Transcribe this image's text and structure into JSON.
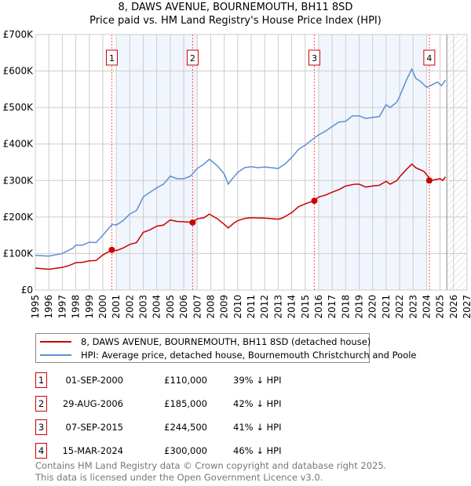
{
  "title": "8, DAWS AVENUE, BOURNEMOUTH, BH11 8SD",
  "subtitle": "Price paid vs. HM Land Registry's House Price Index (HPI)",
  "chart_data": {
    "type": "line",
    "xlim": [
      1995,
      2027
    ],
    "ylim": [
      0,
      700000
    ],
    "y_ticks": [
      {
        "v": 0,
        "label": "£0"
      },
      {
        "v": 100000,
        "label": "£100K"
      },
      {
        "v": 200000,
        "label": "£200K"
      },
      {
        "v": 300000,
        "label": "£300K"
      },
      {
        "v": 400000,
        "label": "£400K"
      },
      {
        "v": 500000,
        "label": "£500K"
      },
      {
        "v": 600000,
        "label": "£600K"
      },
      {
        "v": 700000,
        "label": "£700K"
      }
    ],
    "x_ticks": [
      "1995",
      "1996",
      "1997",
      "1998",
      "1999",
      "2000",
      "2001",
      "2002",
      "2003",
      "2004",
      "2005",
      "2006",
      "2007",
      "2008",
      "2009",
      "2010",
      "2011",
      "2012",
      "2013",
      "2014",
      "2015",
      "2016",
      "2017",
      "2018",
      "2019",
      "2020",
      "2021",
      "2022",
      "2023",
      "2024",
      "2025",
      "2026",
      "2027"
    ],
    "shaded_ranges": [
      [
        2001,
        2007
      ],
      [
        2016,
        2024
      ]
    ],
    "forecast_from": 2025.5,
    "series": [
      {
        "name": "8, DAWS AVENUE, BOURNEMOUTH, BH11 8SD (detached house)",
        "color": "#cc0000",
        "points": [
          [
            1995,
            60
          ],
          [
            1996,
            57
          ],
          [
            1997,
            62
          ],
          [
            1997.5,
            67
          ],
          [
            1998,
            75
          ],
          [
            1998.5,
            76
          ],
          [
            1999,
            80
          ],
          [
            1999.5,
            81
          ],
          [
            2000,
            96
          ],
          [
            2000.67,
            110
          ],
          [
            2001,
            108
          ],
          [
            2001.5,
            115
          ],
          [
            2002,
            125
          ],
          [
            2002.5,
            130
          ],
          [
            2003,
            158
          ],
          [
            2003.5,
            165
          ],
          [
            2004,
            175
          ],
          [
            2004.5,
            178
          ],
          [
            2005,
            192
          ],
          [
            2005.5,
            188
          ],
          [
            2006,
            187
          ],
          [
            2006.66,
            185
          ],
          [
            2007,
            195
          ],
          [
            2007.5,
            198
          ],
          [
            2007.9,
            208
          ],
          [
            2008.5,
            195
          ],
          [
            2009,
            180
          ],
          [
            2009.3,
            170
          ],
          [
            2009.7,
            183
          ],
          [
            2010,
            190
          ],
          [
            2010.5,
            196
          ],
          [
            2011,
            198
          ],
          [
            2012,
            197
          ],
          [
            2013,
            194
          ],
          [
            2013.3,
            197
          ],
          [
            2014,
            212
          ],
          [
            2014.5,
            228
          ],
          [
            2015,
            236
          ],
          [
            2015.68,
            244.5
          ],
          [
            2016,
            255
          ],
          [
            2016.5,
            260
          ],
          [
            2017,
            268
          ],
          [
            2017.5,
            275
          ],
          [
            2018,
            285
          ],
          [
            2018.7,
            290
          ],
          [
            2019,
            290
          ],
          [
            2019.5,
            282
          ],
          [
            2020,
            285
          ],
          [
            2020.5,
            287
          ],
          [
            2021,
            298
          ],
          [
            2021.3,
            290
          ],
          [
            2021.8,
            300
          ],
          [
            2022,
            310
          ],
          [
            2022.5,
            330
          ],
          [
            2022.9,
            345
          ],
          [
            2023.2,
            335
          ],
          [
            2023.8,
            325
          ],
          [
            2024.1,
            312
          ],
          [
            2024.2,
            300
          ],
          [
            2024.6,
            302
          ],
          [
            2025,
            305
          ],
          [
            2025.2,
            300
          ],
          [
            2025.4,
            310
          ]
        ]
      },
      {
        "name": "HPI: Average price, detached house, Bournemouth Christchurch and Poole",
        "color": "#5b8fd4",
        "points": [
          [
            1995,
            95
          ],
          [
            1996,
            93
          ],
          [
            1997,
            100
          ],
          [
            1997.8,
            115
          ],
          [
            1998,
            123
          ],
          [
            1998.5,
            123
          ],
          [
            1999,
            131
          ],
          [
            1999.5,
            130
          ],
          [
            2000,
            150
          ],
          [
            2000.7,
            180
          ],
          [
            2001,
            178
          ],
          [
            2001.5,
            190
          ],
          [
            2002,
            208
          ],
          [
            2002.5,
            218
          ],
          [
            2003,
            255
          ],
          [
            2003.5,
            268
          ],
          [
            2004,
            280
          ],
          [
            2004.5,
            290
          ],
          [
            2005,
            312
          ],
          [
            2005.5,
            305
          ],
          [
            2006,
            305
          ],
          [
            2006.5,
            312
          ],
          [
            2007,
            333
          ],
          [
            2007.5,
            345
          ],
          [
            2007.9,
            358
          ],
          [
            2008.5,
            340
          ],
          [
            2009,
            318
          ],
          [
            2009.3,
            290
          ],
          [
            2009.6,
            305
          ],
          [
            2010,
            322
          ],
          [
            2010.5,
            335
          ],
          [
            2011,
            338
          ],
          [
            2011.5,
            335
          ],
          [
            2012,
            337
          ],
          [
            2013,
            333
          ],
          [
            2013.5,
            345
          ],
          [
            2014,
            363
          ],
          [
            2014.5,
            385
          ],
          [
            2015,
            397
          ],
          [
            2015.7,
            417
          ],
          [
            2016,
            425
          ],
          [
            2016.5,
            435
          ],
          [
            2017,
            448
          ],
          [
            2017.5,
            460
          ],
          [
            2018,
            462
          ],
          [
            2018.5,
            477
          ],
          [
            2019,
            477
          ],
          [
            2019.5,
            470
          ],
          [
            2020,
            473
          ],
          [
            2020.5,
            475
          ],
          [
            2021,
            508
          ],
          [
            2021.3,
            500
          ],
          [
            2021.8,
            515
          ],
          [
            2022,
            530
          ],
          [
            2022.5,
            575
          ],
          [
            2022.9,
            605
          ],
          [
            2023.2,
            580
          ],
          [
            2023.6,
            570
          ],
          [
            2024,
            555
          ],
          [
            2024.3,
            560
          ],
          [
            2024.8,
            570
          ],
          [
            2025.1,
            560
          ],
          [
            2025.4,
            575
          ]
        ]
      }
    ],
    "sales": [
      {
        "label": "1",
        "x": 2000.67,
        "value": 110000
      },
      {
        "label": "2",
        "x": 2006.66,
        "value": 185000
      },
      {
        "label": "3",
        "x": 2015.68,
        "value": 244500
      },
      {
        "label": "4",
        "x": 2024.2,
        "value": 300000
      }
    ]
  },
  "legend": [
    "8, DAWS AVENUE, BOURNEMOUTH, BH11 8SD (detached house)",
    "HPI: Average price, detached house, Bournemouth Christchurch and Poole"
  ],
  "table": [
    {
      "n": "1",
      "date": "01-SEP-2000",
      "price": "£110,000",
      "hpi": "39% ↓ HPI"
    },
    {
      "n": "2",
      "date": "29-AUG-2006",
      "price": "£185,000",
      "hpi": "42% ↓ HPI"
    },
    {
      "n": "3",
      "date": "07-SEP-2015",
      "price": "£244,500",
      "hpi": "41% ↓ HPI"
    },
    {
      "n": "4",
      "date": "15-MAR-2024",
      "price": "£300,000",
      "hpi": "46% ↓ HPI"
    }
  ],
  "footer": [
    "Contains HM Land Registry data © Crown copyright and database right 2025.",
    "This data is licensed under the Open Government Licence v3.0."
  ]
}
